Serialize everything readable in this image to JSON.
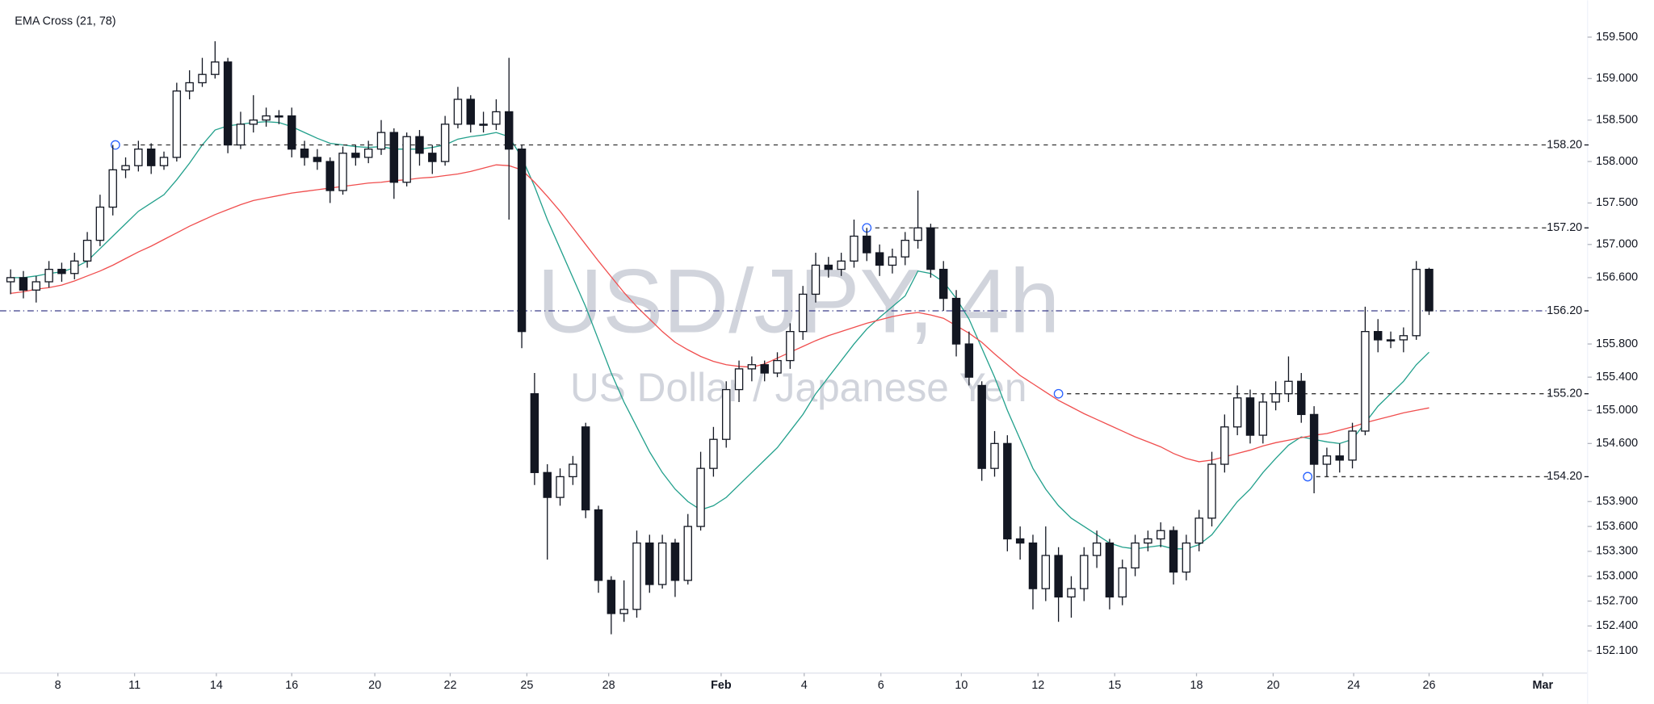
{
  "chart_data": {
    "type": "candlestick",
    "indicator_label": "EMA Cross (21, 78)",
    "watermark": {
      "symbol": "USD/JPY, 4h",
      "description": "US Dollar / Japanese Yen"
    },
    "categories": [
      null,
      null,
      null,
      null,
      null,
      null,
      null,
      null,
      null,
      null,
      null,
      null,
      null,
      null,
      null,
      null,
      null,
      null,
      null,
      null,
      null,
      null,
      null,
      null,
      null,
      null,
      null,
      null,
      null,
      null,
      null,
      null,
      null,
      null,
      null,
      null,
      null,
      null,
      null,
      null,
      null,
      null,
      null,
      null,
      null,
      null,
      null,
      null,
      null,
      null,
      null,
      null,
      null,
      null,
      null,
      null,
      null,
      null,
      null,
      null,
      null,
      null,
      null,
      null,
      null,
      null,
      null,
      null,
      null,
      null,
      null,
      null,
      null,
      null,
      null,
      null,
      null,
      null,
      null,
      null,
      null,
      null,
      null,
      null,
      null,
      null,
      null,
      null,
      null,
      null,
      null,
      null,
      null,
      null,
      null,
      null,
      null,
      null,
      null,
      null,
      null,
      null,
      null,
      null,
      null,
      null,
      null,
      null,
      null,
      null,
      null,
      null
    ],
    "up_color": "#ffffff",
    "down_color": "#131722",
    "open": [
      156.55,
      156.6,
      156.45,
      156.55,
      156.7,
      156.65,
      156.8,
      157.05,
      157.45,
      157.9,
      157.95,
      158.15,
      157.95,
      158.05,
      158.85,
      158.95,
      159.05,
      159.2,
      158.2,
      158.45,
      158.5,
      158.55,
      158.55,
      158.15,
      158.05,
      158.0,
      157.65,
      158.1,
      158.05,
      158.15,
      158.35,
      157.75,
      158.3,
      158.1,
      158.0,
      158.45,
      158.75,
      158.45,
      158.45,
      158.6,
      158.15,
      155.2,
      154.25,
      153.95,
      154.2,
      154.8,
      153.8,
      152.95,
      152.55,
      152.6,
      153.4,
      152.9,
      153.4,
      152.95,
      153.6,
      154.3,
      154.65,
      155.25,
      155.5,
      155.55,
      155.45,
      155.6,
      155.95,
      156.4,
      156.75,
      156.7,
      156.8,
      157.1,
      156.9,
      156.75,
      156.85,
      157.05,
      157.2,
      156.7,
      156.35,
      155.8,
      155.3,
      154.3,
      154.6,
      153.45,
      153.4,
      152.85,
      153.25,
      152.75,
      152.85,
      153.25,
      153.4,
      152.75,
      153.1,
      153.4,
      153.45,
      153.55,
      153.05,
      153.4,
      153.7,
      154.35,
      154.8,
      155.15,
      154.7,
      155.1,
      155.2,
      155.35,
      154.95,
      154.35,
      154.45,
      154.4,
      154.75,
      155.95,
      155.85,
      155.85,
      155.9,
      156.7
    ],
    "high": [
      156.7,
      156.68,
      156.62,
      156.8,
      156.78,
      156.9,
      157.15,
      157.6,
      158.2,
      158.05,
      158.25,
      158.22,
      158.12,
      158.95,
      159.1,
      159.25,
      159.45,
      159.25,
      158.6,
      158.8,
      158.65,
      158.62,
      158.65,
      158.25,
      158.15,
      158.05,
      158.18,
      158.2,
      158.25,
      158.5,
      158.4,
      158.35,
      158.38,
      158.2,
      158.55,
      158.9,
      158.8,
      158.6,
      158.75,
      159.25,
      158.2,
      155.45,
      154.35,
      154.3,
      154.45,
      154.85,
      153.85,
      153.0,
      152.95,
      153.55,
      153.5,
      153.5,
      153.45,
      153.75,
      154.5,
      154.8,
      155.35,
      155.6,
      155.65,
      155.6,
      155.7,
      156.05,
      156.5,
      156.9,
      156.85,
      156.9,
      157.3,
      157.2,
      157.0,
      156.95,
      157.15,
      157.65,
      157.25,
      156.8,
      156.45,
      155.95,
      155.35,
      154.75,
      154.7,
      153.6,
      153.5,
      153.6,
      153.35,
      153.0,
      153.35,
      153.55,
      153.45,
      153.2,
      153.5,
      153.55,
      153.65,
      153.6,
      153.5,
      153.8,
      154.5,
      154.95,
      155.3,
      155.25,
      155.2,
      155.35,
      155.65,
      155.45,
      155.05,
      154.55,
      154.6,
      154.85,
      156.25,
      156.1,
      155.95,
      156.0,
      156.8,
      156.72
    ],
    "low": [
      156.4,
      156.35,
      156.3,
      156.48,
      156.55,
      156.58,
      156.72,
      156.98,
      157.35,
      157.8,
      157.88,
      157.85,
      157.9,
      158.0,
      158.75,
      158.9,
      159.0,
      158.1,
      158.15,
      158.35,
      158.42,
      158.45,
      158.05,
      157.95,
      157.9,
      157.5,
      157.6,
      157.95,
      157.98,
      158.08,
      157.55,
      157.7,
      157.95,
      157.85,
      157.95,
      158.4,
      158.35,
      158.35,
      158.38,
      157.3,
      155.75,
      154.1,
      153.2,
      153.85,
      154.1,
      153.7,
      152.8,
      152.3,
      152.45,
      152.5,
      152.8,
      152.85,
      152.75,
      152.9,
      153.55,
      154.2,
      154.55,
      155.1,
      155.35,
      155.35,
      155.4,
      155.5,
      155.85,
      156.3,
      156.6,
      156.62,
      156.72,
      156.8,
      156.62,
      156.65,
      156.75,
      156.95,
      156.6,
      156.2,
      155.65,
      155.3,
      154.15,
      154.2,
      153.3,
      153.2,
      152.6,
      152.7,
      152.45,
      152.5,
      152.7,
      153.1,
      152.6,
      152.65,
      153.0,
      153.3,
      153.35,
      152.9,
      152.95,
      153.3,
      153.6,
      154.25,
      154.7,
      154.6,
      154.6,
      155.0,
      155.1,
      154.85,
      154.0,
      154.2,
      154.25,
      154.3,
      154.7,
      155.7,
      155.75,
      155.7,
      155.85,
      156.15
    ],
    "close": [
      156.6,
      156.45,
      156.55,
      156.7,
      156.65,
      156.8,
      157.05,
      157.45,
      157.9,
      157.95,
      158.15,
      157.95,
      158.05,
      158.85,
      158.95,
      159.05,
      159.2,
      158.2,
      158.45,
      158.5,
      158.55,
      158.55,
      158.15,
      158.05,
      158.0,
      157.65,
      158.1,
      158.05,
      158.15,
      158.35,
      157.75,
      158.3,
      158.1,
      158.0,
      158.45,
      158.75,
      158.45,
      158.45,
      158.6,
      158.15,
      155.95,
      154.25,
      153.95,
      154.2,
      154.35,
      153.8,
      152.95,
      152.55,
      152.6,
      153.4,
      152.9,
      153.4,
      152.95,
      153.6,
      154.3,
      154.65,
      155.25,
      155.5,
      155.55,
      155.45,
      155.6,
      155.95,
      156.4,
      156.75,
      156.7,
      156.8,
      157.1,
      156.9,
      156.75,
      156.85,
      157.05,
      157.2,
      156.7,
      156.35,
      155.8,
      155.4,
      154.3,
      154.6,
      153.45,
      153.4,
      152.85,
      153.25,
      152.75,
      152.85,
      153.25,
      153.4,
      152.75,
      153.1,
      153.4,
      153.45,
      153.55,
      153.05,
      153.4,
      153.7,
      154.35,
      154.8,
      155.15,
      154.7,
      155.1,
      155.2,
      155.35,
      154.95,
      154.35,
      154.45,
      154.4,
      154.75,
      155.95,
      155.85,
      155.85,
      155.9,
      156.7,
      156.2
    ],
    "lines": [
      {
        "color": "#22a08c",
        "values": [
          156.6,
          156.6,
          156.62,
          156.65,
          156.67,
          156.72,
          156.8,
          156.95,
          157.1,
          157.25,
          157.4,
          157.5,
          157.6,
          157.78,
          157.98,
          158.2,
          158.38,
          158.43,
          158.45,
          158.47,
          158.48,
          158.47,
          158.42,
          158.35,
          158.28,
          158.22,
          158.2,
          158.18,
          158.17,
          158.18,
          158.15,
          158.15,
          158.15,
          158.17,
          158.2,
          158.27,
          158.3,
          158.32,
          158.35,
          158.3,
          158.05,
          157.7,
          157.3,
          156.95,
          156.6,
          156.25,
          155.85,
          155.45,
          155.1,
          154.8,
          154.5,
          154.25,
          154.05,
          153.9,
          153.8,
          153.85,
          153.95,
          154.1,
          154.25,
          154.4,
          154.55,
          154.75,
          154.95,
          155.2,
          155.4,
          155.6,
          155.8,
          155.98,
          156.12,
          156.25,
          156.38,
          156.68,
          156.65,
          156.55,
          156.35,
          156.1,
          155.75,
          155.4,
          155.0,
          154.65,
          154.3,
          154.05,
          153.85,
          153.7,
          153.6,
          153.5,
          153.4,
          153.35,
          153.33,
          153.35,
          153.37,
          153.33,
          153.33,
          153.38,
          153.5,
          153.7,
          153.9,
          154.05,
          154.25,
          154.42,
          154.58,
          154.68,
          154.65,
          154.62,
          154.6,
          154.65,
          154.85,
          155.05,
          155.2,
          155.35,
          155.55,
          155.7
        ]
      },
      {
        "color": "#f04e4e",
        "values": [
          156.41,
          156.43,
          156.46,
          156.48,
          156.51,
          156.56,
          156.62,
          156.68,
          156.75,
          156.83,
          156.91,
          156.98,
          157.06,
          157.14,
          157.22,
          157.29,
          157.36,
          157.42,
          157.48,
          157.53,
          157.56,
          157.59,
          157.62,
          157.64,
          157.66,
          157.68,
          157.7,
          157.72,
          157.74,
          157.75,
          157.77,
          157.78,
          157.8,
          157.81,
          157.83,
          157.85,
          157.88,
          157.92,
          157.96,
          157.95,
          157.9,
          157.75,
          157.58,
          157.4,
          157.2,
          157.0,
          156.8,
          156.61,
          156.42,
          156.25,
          156.1,
          155.95,
          155.82,
          155.73,
          155.65,
          155.59,
          155.55,
          155.53,
          155.52,
          155.56,
          155.63,
          155.7,
          155.77,
          155.84,
          155.9,
          155.95,
          156.0,
          156.05,
          156.09,
          156.13,
          156.16,
          156.18,
          156.15,
          156.11,
          156.02,
          155.93,
          155.82,
          155.68,
          155.55,
          155.42,
          155.32,
          155.22,
          155.12,
          155.04,
          154.96,
          154.89,
          154.82,
          154.75,
          154.68,
          154.62,
          154.56,
          154.48,
          154.42,
          154.38,
          154.4,
          154.44,
          154.48,
          154.52,
          154.57,
          154.61,
          154.64,
          154.67,
          154.7,
          154.72,
          154.76,
          154.8,
          154.85,
          154.89,
          154.93,
          154.97,
          155.0,
          155.03
        ]
      }
    ],
    "levels": [
      {
        "value": 158.2,
        "label": "158.20",
        "from": 8.2,
        "style": "dashed",
        "color": "#333333"
      },
      {
        "value": 157.2,
        "label": "157.20",
        "from": 67,
        "style": "dashed",
        "color": "#333333"
      },
      {
        "value": 156.2,
        "label": "156.20",
        "style": "dashdot",
        "color": "#3c3f8a"
      },
      {
        "value": 155.2,
        "label": "155.20",
        "from": 82,
        "style": "dashed",
        "color": "#333333"
      },
      {
        "value": 154.2,
        "label": "154.20",
        "from": 101.5,
        "style": "dashed",
        "color": "#333333"
      }
    ],
    "xlim": [
      -0.83,
      123.4
    ],
    "xticks": [
      {
        "value": 3.7,
        "label": "8"
      },
      {
        "value": 9.7,
        "label": "11"
      },
      {
        "value": 16.1,
        "label": "14"
      },
      {
        "value": 22.0,
        "label": "16"
      },
      {
        "value": 28.5,
        "label": "20"
      },
      {
        "value": 34.4,
        "label": "22"
      },
      {
        "value": 40.4,
        "label": "25"
      },
      {
        "value": 46.8,
        "label": "28"
      },
      {
        "value": 55.6,
        "label": "Feb"
      },
      {
        "value": 62.1,
        "label": "4"
      },
      {
        "value": 68.1,
        "label": "6"
      },
      {
        "value": 74.4,
        "label": "10"
      },
      {
        "value": 80.4,
        "label": "12"
      },
      {
        "value": 86.4,
        "label": "15"
      },
      {
        "value": 92.8,
        "label": "18"
      },
      {
        "value": 98.8,
        "label": "20"
      },
      {
        "value": 105.1,
        "label": "24"
      },
      {
        "value": 111.0,
        "label": "26"
      },
      {
        "value": 119.9,
        "label": "Mar"
      }
    ],
    "ylim": [
      151.87,
      159.88
    ],
    "yticks": [
      {
        "value": 159.5,
        "label": "159.500"
      },
      {
        "value": 159.0,
        "label": "159.000"
      },
      {
        "value": 158.5,
        "label": "158.500"
      },
      {
        "value": 158.0,
        "label": "158.000"
      },
      {
        "value": 157.5,
        "label": "157.500"
      },
      {
        "value": 157.0,
        "label": "157.000"
      },
      {
        "value": 156.6,
        "label": "156.600"
      },
      {
        "value": 155.8,
        "label": "155.800"
      },
      {
        "value": 155.4,
        "label": "155.400"
      },
      {
        "value": 155.0,
        "label": "155.000"
      },
      {
        "value": 154.6,
        "label": "154.600"
      },
      {
        "value": 153.9,
        "label": "153.900"
      },
      {
        "value": 153.6,
        "label": "153.600"
      },
      {
        "value": 153.3,
        "label": "153.300"
      },
      {
        "value": 153.0,
        "label": "153.000"
      },
      {
        "value": 152.7,
        "label": "152.700"
      },
      {
        "value": 152.4,
        "label": "152.400"
      },
      {
        "value": 152.1,
        "label": "152.100"
      }
    ]
  }
}
